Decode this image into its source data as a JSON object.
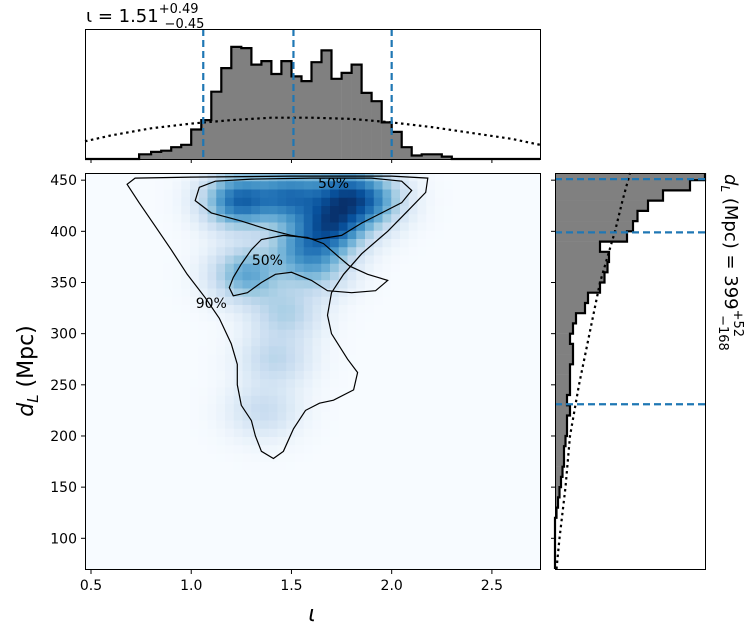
{
  "chart_data": [
    {
      "type": "heatmap",
      "panel": "joint",
      "xlabel": "ι",
      "ylabel": "d_L (Mpc)",
      "xlim": [
        0.47,
        2.74
      ],
      "ylim": [
        70,
        457
      ],
      "xticks": [
        0.5,
        1.0,
        1.5,
        2.0,
        2.5
      ],
      "xtick_labels": [
        "0.5",
        "1.0",
        "1.5",
        "2.0",
        "2.5"
      ],
      "yticks": [
        100,
        150,
        200,
        250,
        300,
        350,
        400,
        450
      ],
      "ytick_labels": [
        "100",
        "150",
        "200",
        "250",
        "300",
        "350",
        "400",
        "450"
      ],
      "colormap": "Blues",
      "density_peaks": [
        {
          "x": 1.24,
          "y": 430,
          "w": 1.0
        },
        {
          "x": 1.49,
          "y": 434,
          "w": 0.85
        },
        {
          "x": 1.7,
          "y": 405,
          "w": 1.0
        },
        {
          "x": 1.88,
          "y": 430,
          "w": 0.75
        },
        {
          "x": 1.74,
          "y": 437,
          "w": 0.7
        },
        {
          "x": 1.28,
          "y": 358,
          "w": 0.6
        },
        {
          "x": 1.62,
          "y": 365,
          "w": 0.4
        },
        {
          "x": 1.47,
          "y": 320,
          "w": 0.3
        },
        {
          "x": 1.42,
          "y": 275,
          "w": 0.25
        },
        {
          "x": 1.36,
          "y": 225,
          "w": 0.2
        },
        {
          "x": 1.55,
          "y": 385,
          "w": 0.5
        }
      ],
      "contours": [
        {
          "label": "90%",
          "label_at": [
            1.1,
            330
          ],
          "points": [
            [
              1.41,
              178
            ],
            [
              1.35,
              185
            ],
            [
              1.32,
              200
            ],
            [
              1.3,
              215
            ],
            [
              1.25,
              230
            ],
            [
              1.23,
              250
            ],
            [
              1.23,
              270
            ],
            [
              1.2,
              290
            ],
            [
              1.14,
              315
            ],
            [
              1.07,
              335
            ],
            [
              0.98,
              358
            ],
            [
              0.9,
              382
            ],
            [
              0.82,
              405
            ],
            [
              0.74,
              428
            ],
            [
              0.68,
              446
            ],
            [
              0.72,
              452
            ],
            [
              1.0,
              453
            ],
            [
              1.5,
              454
            ],
            [
              2.0,
              454
            ],
            [
              2.18,
              452
            ],
            [
              2.17,
              438
            ],
            [
              2.08,
              420
            ],
            [
              1.98,
              400
            ],
            [
              1.85,
              378
            ],
            [
              1.76,
              358
            ],
            [
              1.7,
              340
            ],
            [
              1.68,
              318
            ],
            [
              1.7,
              300
            ],
            [
              1.78,
              275
            ],
            [
              1.83,
              262
            ],
            [
              1.81,
              245
            ],
            [
              1.71,
              235
            ],
            [
              1.64,
              232
            ],
            [
              1.57,
              225
            ],
            [
              1.51,
              207
            ],
            [
              1.46,
              185
            ],
            [
              1.41,
              178
            ]
          ]
        },
        {
          "label": "50%",
          "label_at": [
            1.38,
            372
          ],
          "points": [
            [
              1.21,
              337
            ],
            [
              1.19,
              345
            ],
            [
              1.21,
              355
            ],
            [
              1.25,
              368
            ],
            [
              1.3,
              382
            ],
            [
              1.35,
              392
            ],
            [
              1.46,
              396
            ],
            [
              1.58,
              394
            ],
            [
              1.66,
              388
            ],
            [
              1.73,
              376
            ],
            [
              1.79,
              366
            ],
            [
              1.88,
              358
            ],
            [
              1.98,
              352
            ],
            [
              1.92,
              342
            ],
            [
              1.8,
              340
            ],
            [
              1.68,
              342
            ],
            [
              1.6,
              352
            ],
            [
              1.5,
              360
            ],
            [
              1.42,
              358
            ],
            [
              1.35,
              350
            ],
            [
              1.28,
              340
            ],
            [
              1.21,
              337
            ]
          ]
        },
        {
          "label": "50%",
          "label_at": [
            1.71,
            447
          ],
          "points": [
            [
              1.02,
              430
            ],
            [
              1.04,
              443
            ],
            [
              1.12,
              449
            ],
            [
              1.3,
              451
            ],
            [
              1.6,
              452
            ],
            [
              1.9,
              452
            ],
            [
              2.05,
              449
            ],
            [
              2.1,
              440
            ],
            [
              2.05,
              428
            ],
            [
              1.95,
              418
            ],
            [
              1.85,
              408
            ],
            [
              1.75,
              396
            ],
            [
              1.62,
              392
            ],
            [
              1.5,
              396
            ],
            [
              1.38,
              402
            ],
            [
              1.25,
              410
            ],
            [
              1.1,
              418
            ],
            [
              1.02,
              430
            ]
          ]
        }
      ]
    },
    {
      "type": "histogram",
      "panel": "top",
      "title": "ι = 1.51 +0.49 −0.45",
      "title_parts": {
        "symbol": "ι",
        "median": "1.51",
        "plus": "+0.49",
        "minus": "−0.45"
      },
      "bin_edges": [
        0.47,
        0.74,
        0.8,
        0.85,
        0.9,
        0.95,
        1.0,
        1.05,
        1.1,
        1.15,
        1.2,
        1.25,
        1.3,
        1.35,
        1.4,
        1.45,
        1.5,
        1.55,
        1.6,
        1.65,
        1.7,
        1.75,
        1.8,
        1.85,
        1.9,
        1.95,
        2.0,
        2.05,
        2.1,
        2.15,
        2.2,
        2.25,
        2.3,
        2.35,
        2.74
      ],
      "counts": [
        0,
        0.04,
        0.06,
        0.07,
        0.1,
        0.12,
        0.25,
        0.33,
        0.57,
        0.77,
        0.95,
        0.94,
        0.8,
        0.83,
        0.72,
        0.83,
        0.7,
        0.66,
        0.82,
        0.92,
        0.68,
        0.73,
        0.8,
        0.56,
        0.49,
        0.31,
        0.23,
        0.1,
        0.03,
        0.04,
        0.04,
        0.02,
        0,
        0
      ],
      "prior": [
        [
          0.47,
          0.15
        ],
        [
          0.6,
          0.2
        ],
        [
          0.8,
          0.26
        ],
        [
          1.0,
          0.3
        ],
        [
          1.2,
          0.33
        ],
        [
          1.4,
          0.35
        ],
        [
          1.6,
          0.35
        ],
        [
          1.8,
          0.34
        ],
        [
          2.0,
          0.31
        ],
        [
          2.2,
          0.27
        ],
        [
          2.4,
          0.22
        ],
        [
          2.6,
          0.17
        ],
        [
          2.74,
          0.12
        ]
      ],
      "quantile_lines": [
        1.06,
        1.51,
        2.0
      ]
    },
    {
      "type": "histogram",
      "panel": "right",
      "title": "d_L (Mpc) = 399 +52 −168",
      "title_parts": {
        "symbol": "d_L (Mpc)",
        "median": "399",
        "plus": "+52",
        "minus": "−168"
      },
      "orientation": "horizontal",
      "bin_edges": [
        70,
        120,
        130,
        140,
        150,
        160,
        170,
        180,
        190,
        200,
        210,
        220,
        230,
        240,
        250,
        260,
        270,
        280,
        290,
        300,
        310,
        320,
        330,
        340,
        350,
        360,
        370,
        380,
        390,
        400,
        410,
        420,
        430,
        440,
        450,
        457
      ],
      "counts": [
        0,
        0.01,
        0.02,
        0.03,
        0.04,
        0.05,
        0.06,
        0.06,
        0.07,
        0.08,
        0.08,
        0.1,
        0.08,
        0.1,
        0.1,
        0.1,
        0.12,
        0.12,
        0.1,
        0.12,
        0.14,
        0.2,
        0.22,
        0.3,
        0.33,
        0.35,
        0.36,
        0.3,
        0.48,
        0.52,
        0.55,
        0.62,
        0.72,
        0.9,
        1.0
      ],
      "prior": [
        [
          70,
          0.01
        ],
        [
          100,
          0.03
        ],
        [
          150,
          0.07
        ],
        [
          200,
          0.1
        ],
        [
          250,
          0.16
        ],
        [
          300,
          0.23
        ],
        [
          350,
          0.3
        ],
        [
          400,
          0.4
        ],
        [
          430,
          0.45
        ],
        [
          457,
          0.5
        ]
      ],
      "quantile_lines": [
        231,
        399,
        451
      ]
    }
  ]
}
